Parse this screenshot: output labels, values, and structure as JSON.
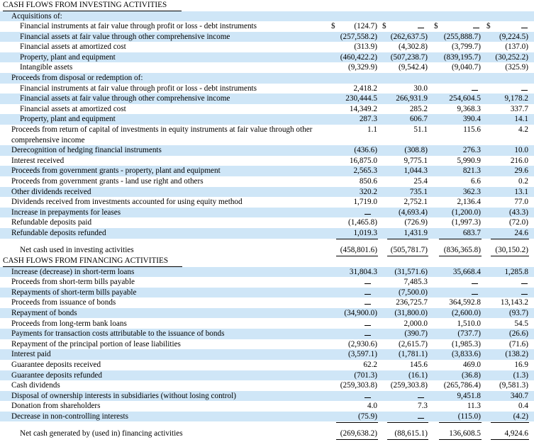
{
  "investing": {
    "header": "CASH FLOWS FROM INVESTING ACTIVITIES",
    "acquisitions_label": "Acquisitions of:",
    "acquisitions": [
      {
        "label": "Financial instruments at fair value through profit or loss - debt instruments",
        "v1": "(124.7)",
        "v2": "",
        "v3": "",
        "v4": ""
      },
      {
        "label": "Financial assets at fair value through other comprehensive income",
        "v1": "(257,558.2)",
        "v2": "(262,637.5)",
        "v3": "(255,888.7)",
        "v4": "(9,224.5)"
      },
      {
        "label": "Financial assets at amortized cost",
        "v1": "(313.9)",
        "v2": "(4,302.8)",
        "v3": "(3,799.7)",
        "v4": "(137.0)"
      },
      {
        "label": "Property, plant and equipment",
        "v1": "(460,422.2)",
        "v2": "(507,238.7)",
        "v3": "(839,195.7)",
        "v4": "(30,252.2)"
      },
      {
        "label": "Intangible assets",
        "v1": "(9,329.9)",
        "v2": "(9,542.4)",
        "v3": "(9,040.7)",
        "v4": "(325.9)"
      }
    ],
    "disposal_label": "Proceeds from disposal or redemption of:",
    "disposals": [
      {
        "label": "Financial instruments at fair value through profit or loss - debt instruments",
        "v1": "2,418.2",
        "v2": "30.0",
        "v3": "",
        "v4": ""
      },
      {
        "label": "Financial assets at fair value through other comprehensive income",
        "v1": "230,444.5",
        "v2": "266,931.9",
        "v3": "254,604.5",
        "v4": "9,178.2"
      },
      {
        "label": "Financial assets at amortized cost",
        "v1": "14,349.2",
        "v2": "285.2",
        "v3": "9,368.3",
        "v4": "337.7"
      },
      {
        "label": "Property, plant and equipment",
        "v1": "287.3",
        "v2": "606.7",
        "v3": "390.4",
        "v4": "14.1"
      }
    ],
    "return_of_capital": {
      "label": "Proceeds from return of capital of investments in equity instruments at fair value through other comprehensive income",
      "v1": "1.1",
      "v2": "51.1",
      "v3": "115.6",
      "v4": "4.2"
    },
    "others": [
      {
        "label": "Derecognition of hedging financial instruments",
        "v1": "(436.6)",
        "v2": "(308.8)",
        "v3": "276.3",
        "v4": "10.0"
      },
      {
        "label": "Interest received",
        "v1": "16,875.0",
        "v2": "9,775.1",
        "v3": "5,990.9",
        "v4": "216.0"
      },
      {
        "label": "Proceeds from government grants - property, plant and equipment",
        "v1": "2,565.3",
        "v2": "1,044.3",
        "v3": "821.3",
        "v4": "29.6"
      },
      {
        "label": "Proceeds from government grants - land use right and others",
        "v1": "850.6",
        "v2": "25.4",
        "v3": "6.6",
        "v4": "0.2"
      },
      {
        "label": "Other dividends received",
        "v1": "320.2",
        "v2": "735.1",
        "v3": "362.3",
        "v4": "13.1"
      },
      {
        "label": "Dividends received from investments accounted for using equity method",
        "v1": "1,719.0",
        "v2": "2,752.1",
        "v3": "2,136.4",
        "v4": "77.0"
      },
      {
        "label": "Increase in prepayments for leases",
        "v1": "",
        "v2": "(4,693.4)",
        "v3": "(1,200.0)",
        "v4": "(43.3)"
      },
      {
        "label": "Refundable deposits paid",
        "v1": "(1,465.8)",
        "v2": "(726.9)",
        "v3": "(1,997.3)",
        "v4": "(72.0)"
      },
      {
        "label": "Refundable deposits refunded",
        "v1": "1,019.3",
        "v2": "1,431.9",
        "v3": "683.7",
        "v4": "24.6"
      }
    ],
    "net": {
      "label": "Net cash used in investing activities",
      "v1": "(458,801.6)",
      "v2": "(505,781.7)",
      "v3": "(836,365.8)",
      "v4": "(30,150.2)"
    }
  },
  "financing": {
    "header": "CASH FLOWS FROM FINANCING ACTIVITIES",
    "rows": [
      {
        "label": "Increase (decrease) in short-term loans",
        "v1": "31,804.3",
        "v2": "(31,571.6)",
        "v3": "35,668.4",
        "v4": "1,285.8"
      },
      {
        "label": "Proceeds from short-term bills payable",
        "v1": "",
        "v2": "7,485.3",
        "v3": "",
        "v4": ""
      },
      {
        "label": "Repayments of short-term bills payable",
        "v1": "",
        "v2": "(7,500.0)",
        "v3": "",
        "v4": ""
      },
      {
        "label": "Proceeds from issuance of bonds",
        "v1": "",
        "v2": "236,725.7",
        "v3": "364,592.8",
        "v4": "13,143.2"
      },
      {
        "label": "Repayment of bonds",
        "v1": "(34,900.0)",
        "v2": "(31,800.0)",
        "v3": "(2,600.0)",
        "v4": "(93.7)"
      },
      {
        "label": "Proceeds from long-term bank loans",
        "v1": "",
        "v2": "2,000.0",
        "v3": "1,510.0",
        "v4": "54.5"
      },
      {
        "label": "Payments for transaction costs attributable to the issuance of bonds",
        "v1": "",
        "v2": "(390.7)",
        "v3": "(737.7)",
        "v4": "(26.6)"
      },
      {
        "label": "Repayment of the principal portion of lease liabilities",
        "v1": "(2,930.6)",
        "v2": "(2,615.7)",
        "v3": "(1,985.3)",
        "v4": "(71.6)"
      },
      {
        "label": "Interest paid",
        "v1": "(3,597.1)",
        "v2": "(1,781.1)",
        "v3": "(3,833.6)",
        "v4": "(138.2)"
      },
      {
        "label": "Guarantee deposits received",
        "v1": "62.2",
        "v2": "145.6",
        "v3": "469.0",
        "v4": "16.9"
      },
      {
        "label": "Guarantee deposits refunded",
        "v1": "(701.3)",
        "v2": "(16.1)",
        "v3": "(36.8)",
        "v4": "(1.3)"
      },
      {
        "label": "Cash dividends",
        "v1": "(259,303.8)",
        "v2": "(259,303.8)",
        "v3": "(265,786.4)",
        "v4": "(9,581.3)"
      },
      {
        "label": "Disposal of ownership interests in subsidiaries (without losing control)",
        "v1": "",
        "v2": "",
        "v3": "9,451.8",
        "v4": "340.7"
      },
      {
        "label": "Donation from shareholders",
        "v1": "4.0",
        "v2": "7.3",
        "v3": "11.3",
        "v4": "0.4"
      },
      {
        "label": "Decrease in non-controlling interests",
        "v1": "(75.9)",
        "v2": "",
        "v3": "(115.0)",
        "v4": "(4.2)"
      }
    ],
    "net": {
      "label": "Net cash generated by (used in) financing activities",
      "v1": "(269,638.2)",
      "v2": "(88,615.1)",
      "v3": "136,608.5",
      "v4": "4,924.6"
    }
  },
  "currency_symbol": "$"
}
